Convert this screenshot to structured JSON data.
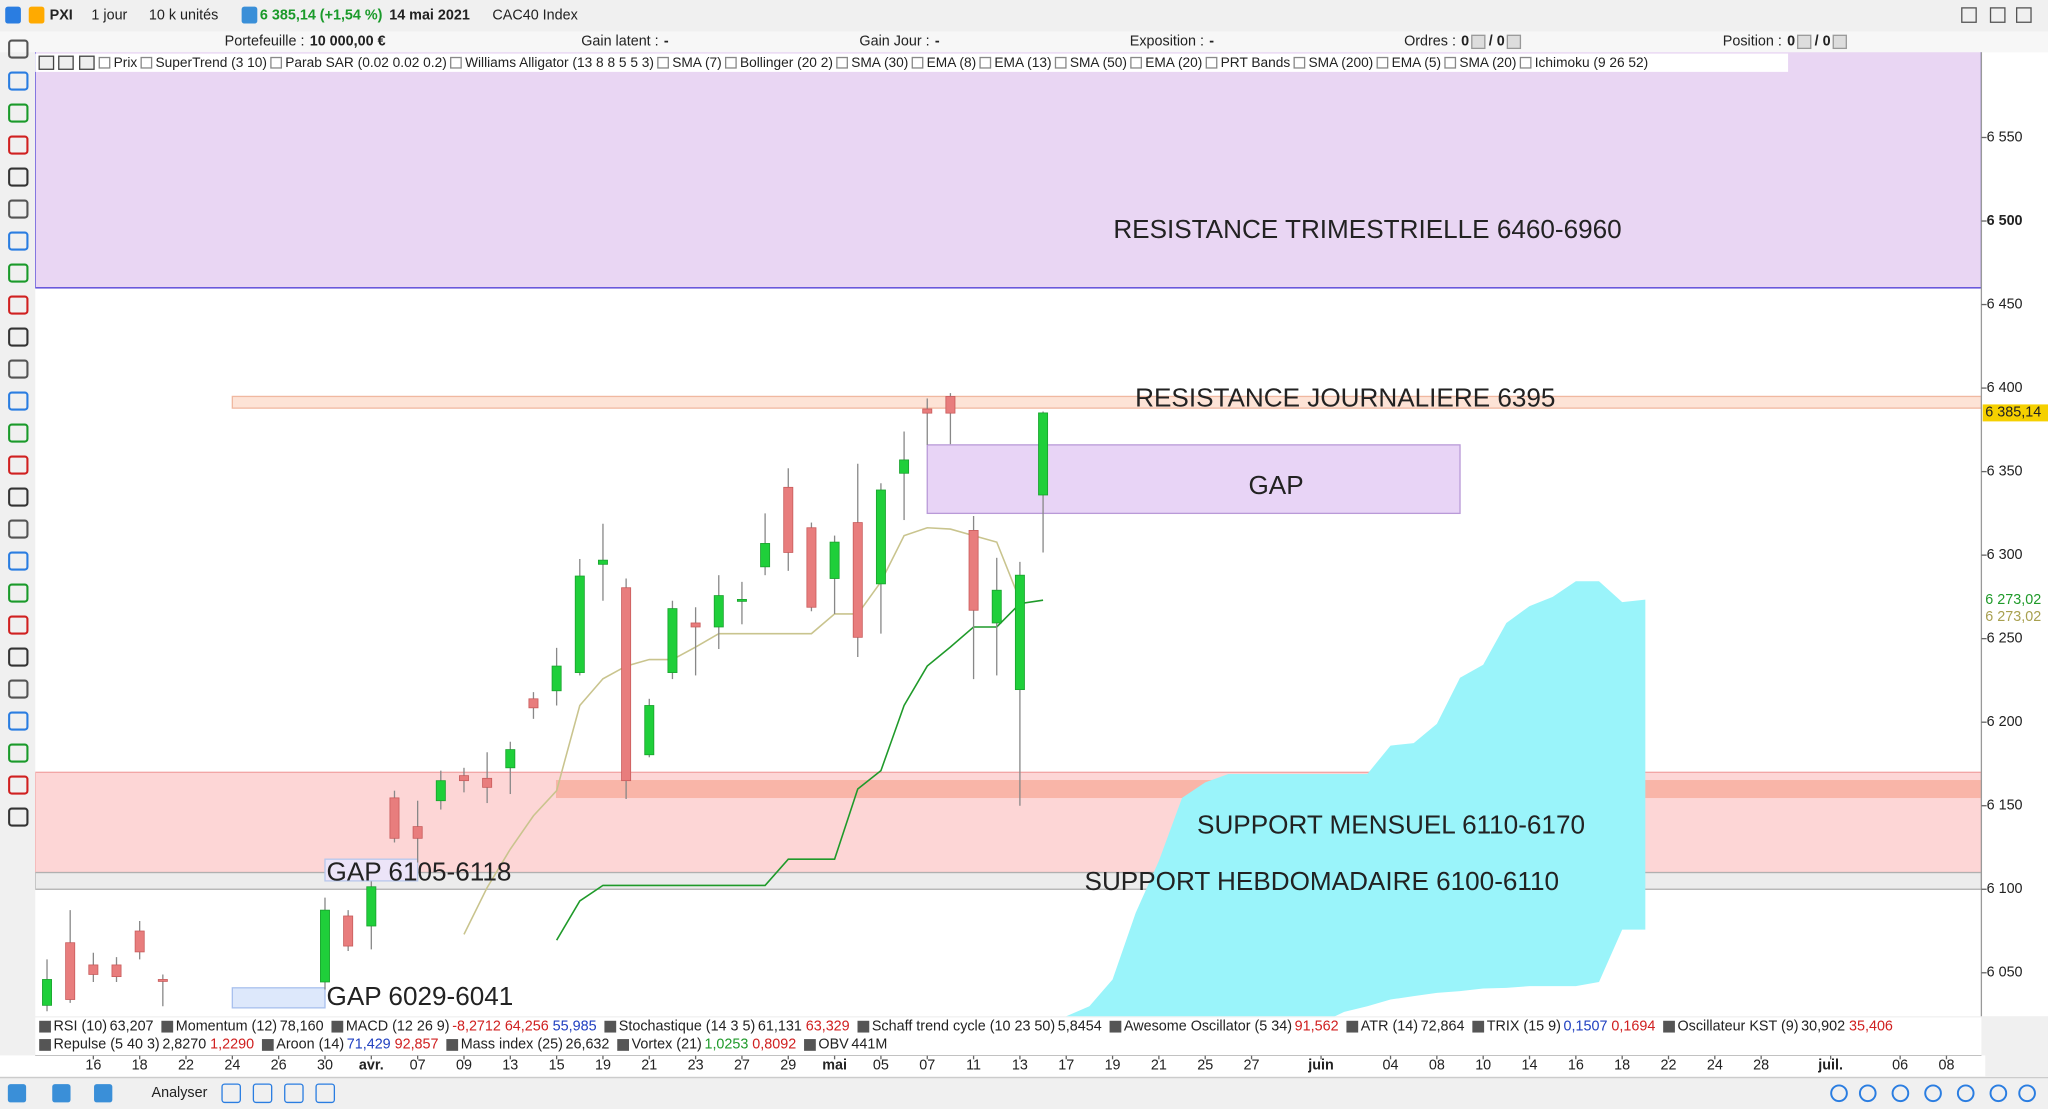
{
  "toolbar": {
    "symbol": "PXI",
    "period": "1 jour",
    "units": "10 k unités",
    "price": "6 385,14 (+1,54 %)",
    "date": "14 mai 2021",
    "instrument": "CAC40 Index"
  },
  "info_bar": [
    {
      "label": "Portefeuille :",
      "value": "10 000,00 €"
    },
    {
      "label": "Gain latent :",
      "value": "-"
    },
    {
      "label": "Gain Jour :",
      "value": "-"
    },
    {
      "label": "Exposition :",
      "value": "-"
    },
    {
      "label": "Ordres :",
      "value": "0",
      "extra": "/ 0"
    },
    {
      "label": "Position :",
      "value": "0",
      "extra": "/ 0"
    }
  ],
  "overlays": [
    "Prix",
    "SuperTrend (3 10)",
    "Parab SAR (0.02 0.02 0.2)",
    "Williams Alligator (13 8 8 5 5 3)",
    "SMA (7)",
    "Bollinger (20 2)",
    "SMA (30)",
    "EMA (8)",
    "EMA (13)",
    "SMA (50)",
    "EMA (20)",
    "PRT Bands",
    "SMA (200)",
    "EMA (5)",
    "SMA (20)",
    "Ichimoku (9 26 52)"
  ],
  "chart_data": {
    "type": "candlestick",
    "categories": [
      null,
      null,
      "16",
      null,
      "18",
      null,
      "22",
      null,
      "24",
      null,
      "26",
      null,
      "30",
      null,
      "avr.",
      null,
      "07",
      null,
      "09",
      null,
      "13",
      null,
      "15",
      null,
      "19",
      null,
      "21",
      null,
      "23",
      null,
      "27",
      null,
      "29",
      null,
      "mai",
      null,
      "05",
      null,
      "07",
      null,
      "11",
      null,
      "13",
      null,
      "17",
      null,
      "19",
      null,
      "21",
      null,
      "25",
      null,
      "27",
      null,
      null,
      "juin",
      null,
      null,
      "04",
      null,
      "08",
      null,
      "10",
      null,
      "14",
      null,
      "16",
      null,
      "18",
      null,
      "22",
      null,
      "24",
      null,
      "28",
      null,
      null,
      "juil.",
      null,
      null,
      "06",
      null,
      "08",
      null
    ],
    "open": [
      6030.5,
      6068,
      6054.7,
      6054.7,
      6075,
      6046,
      null,
      null,
      null,
      null,
      null,
      null,
      6044.5,
      6084,
      6078,
      6154.7,
      6137.5,
      6153,
      6168,
      6166.4,
      6172.7,
      6214,
      6218.8,
      6229.7,
      6294.5,
      6280.5,
      6180.5,
      6229.7,
      6259.4,
      6257,
      6273,
      6293,
      6340.6,
      6316.4,
      6286,
      6319.5,
      6282.8,
      6349,
      6387.5,
      6395,
      6314.8,
      6259.4,
      6219.5,
      6336,
      null,
      null,
      null,
      null,
      null,
      null,
      null,
      null,
      null,
      null,
      null,
      null,
      null,
      null,
      null,
      null,
      null,
      null,
      null,
      null,
      null,
      null,
      null,
      null,
      null,
      null,
      null,
      null,
      null,
      null,
      null,
      null,
      null,
      null,
      null,
      null,
      null,
      null,
      null,
      null
    ],
    "high": [
      6058,
      6087.5,
      6062,
      6059.4,
      6081,
      6049,
      null,
      null,
      null,
      null,
      null,
      null,
      6095,
      6087.5,
      6104.7,
      6159,
      6153,
      6171,
      6172.7,
      6182,
      6188.3,
      6218,
      6244.5,
      6297.7,
      6318.8,
      6286,
      6214,
      6272.7,
      6268.8,
      6288,
      6284,
      6325,
      6352,
      6319.5,
      6311.7,
      6354.7,
      6343,
      6374,
      6393.8,
      6397,
      6323.4,
      6298.4,
      6296,
      6386,
      null,
      null,
      null,
      null,
      null,
      null,
      null,
      null,
      null,
      null,
      null,
      null,
      null,
      null,
      null,
      null,
      null,
      null,
      null,
      null,
      null,
      null,
      null,
      null,
      null,
      null,
      null,
      null,
      null,
      null,
      null,
      null,
      null,
      null,
      null,
      null,
      null,
      null,
      null,
      null
    ],
    "low": [
      6027,
      6032,
      6044.5,
      6044.5,
      6058,
      6030,
      null,
      null,
      null,
      null,
      null,
      null,
      6040,
      6063,
      6064,
      6128,
      6116,
      6147.7,
      6158,
      6151.6,
      6157,
      6202,
      6210,
      6228,
      6272.7,
      6154,
      6179,
      6225.8,
      6228,
      6243.8,
      6258.6,
      6288,
      6290.6,
      6266.4,
      6264.8,
      6239,
      6253,
      6321,
      6366,
      6366.4,
      6225.8,
      6228,
      6150,
      6301.6,
      null,
      null,
      null,
      null,
      null,
      null,
      null,
      null,
      null,
      null,
      null,
      null,
      null,
      null,
      null,
      null,
      null,
      null,
      null,
      null,
      null,
      null,
      null,
      null,
      null,
      null,
      null,
      null,
      null,
      null,
      null,
      null,
      null,
      null,
      null,
      null,
      null,
      null,
      null,
      null
    ],
    "close": [
      6046,
      6034,
      6049,
      6047.7,
      6062.5,
      6045,
      null,
      null,
      null,
      null,
      null,
      null,
      6087.5,
      6066,
      6101.5,
      6130.5,
      6130.5,
      6165,
      6165,
      6161,
      6183.6,
      6208.6,
      6233.6,
      6287.5,
      6297,
      6165,
      6210,
      6268,
      6257,
      6275.8,
      6273.5,
      6307,
      6301.6,
      6268.8,
      6307.8,
      6250.8,
      6339,
      6357,
      6385,
      6385,
      6267,
      6279,
      6288,
      6385.14,
      null,
      null,
      null,
      null,
      null,
      null,
      null,
      null,
      null,
      null,
      null,
      null,
      null,
      null,
      null,
      null,
      null,
      null,
      null,
      null,
      null,
      null,
      null,
      null,
      null,
      null,
      null,
      null,
      null,
      null,
      null,
      null,
      null,
      null,
      null,
      null,
      null,
      null,
      null,
      null
    ],
    "up_color": "#1fcf3a",
    "down_color": "#e87d7d",
    "ylim": [
      6024,
      6601
    ],
    "yticks": [
      {
        "value": 6550,
        "label": "6 550"
      },
      {
        "value": 6500,
        "label": "6 500"
      },
      {
        "value": 6450,
        "label": "6 450"
      },
      {
        "value": 6400,
        "label": "6 400"
      },
      {
        "value": 6350,
        "label": "6 350"
      },
      {
        "value": 6300,
        "label": "6 300"
      },
      {
        "value": 6250,
        "label": "6 250"
      },
      {
        "value": 6200,
        "label": "6 200"
      },
      {
        "value": 6150,
        "label": "6 150"
      },
      {
        "value": 6100,
        "label": "6 100"
      },
      {
        "value": 6050,
        "label": "6 050"
      }
    ],
    "lines": [
      {
        "color": "#1f9a2a",
        "values": [
          null,
          null,
          null,
          null,
          null,
          null,
          null,
          null,
          null,
          null,
          null,
          null,
          null,
          null,
          null,
          null,
          null,
          null,
          null,
          null,
          null,
          null,
          6069.5,
          6093,
          6102.3,
          6102.3,
          6102.3,
          6102.3,
          6102.3,
          6102.3,
          6102.3,
          6102.3,
          6118,
          6118,
          6118,
          6160,
          6171,
          6210,
          6233.6,
          6245,
          6257,
          6257,
          6271,
          6273.02,
          null,
          null,
          null,
          null,
          null,
          null,
          null,
          null,
          null,
          null,
          null,
          null,
          null,
          null,
          null,
          null,
          null,
          null,
          null,
          null,
          null,
          null,
          null,
          null,
          null,
          null,
          null,
          null,
          null,
          null,
          null,
          null,
          null,
          null,
          null,
          null,
          null,
          null,
          null,
          null
        ]
      },
      {
        "color": "#c9c48e",
        "values": [
          null,
          null,
          null,
          null,
          null,
          null,
          null,
          null,
          null,
          null,
          null,
          null,
          null,
          null,
          null,
          null,
          null,
          null,
          6073,
          6101,
          6124,
          6144,
          6159,
          6210,
          6226,
          6233.6,
          6237.5,
          6237.5,
          6245,
          6253,
          6253,
          6253,
          6253,
          6253,
          6264.8,
          6264.8,
          6284,
          6311.7,
          6316.4,
          6315.6,
          6311.7,
          6307.8,
          6273.02,
          null,
          null,
          null,
          null,
          null,
          null,
          null,
          null,
          null,
          null,
          null,
          null,
          null,
          null,
          null,
          null,
          null,
          null,
          null,
          null,
          null,
          null,
          null,
          null,
          null,
          null,
          null,
          null,
          null,
          null,
          null,
          null,
          null,
          null,
          null,
          null,
          null,
          null,
          null,
          null,
          null
        ]
      }
    ],
    "cloud": {
      "color": "#9af4fa",
      "upper": [
        null,
        null,
        null,
        null,
        null,
        null,
        null,
        null,
        null,
        null,
        null,
        null,
        null,
        null,
        null,
        null,
        null,
        null,
        null,
        null,
        null,
        null,
        null,
        null,
        null,
        null,
        null,
        null,
        null,
        null,
        null,
        null,
        null,
        null,
        null,
        null,
        null,
        null,
        null,
        null,
        null,
        null,
        null,
        null,
        6024,
        6030,
        6046,
        6085.9,
        6117,
        6154.7,
        6164,
        6169,
        6169,
        6169,
        6169,
        6169,
        6169,
        6169,
        6186,
        6187.5,
        6199,
        6226.6,
        6234.4,
        6259.4,
        6269.5,
        6275,
        6284.4,
        6284.4,
        6271.9,
        6273.4,
        null,
        null,
        null,
        null,
        null,
        null,
        null,
        null,
        null,
        null,
        null,
        null,
        null,
        null
      ],
      "lower": [
        null,
        null,
        null,
        null,
        null,
        null,
        null,
        null,
        null,
        null,
        null,
        null,
        null,
        null,
        null,
        null,
        null,
        null,
        null,
        null,
        null,
        null,
        null,
        null,
        null,
        null,
        null,
        null,
        null,
        null,
        null,
        null,
        null,
        null,
        null,
        null,
        null,
        null,
        null,
        null,
        null,
        null,
        null,
        null,
        6020,
        6020,
        6020,
        6020,
        6020,
        6020,
        6020,
        6020,
        6020,
        6020,
        6020,
        6020,
        6026.6,
        6030,
        6034,
        6036,
        6038,
        6039,
        6040.6,
        6041,
        6042,
        6042,
        6042,
        6044.5,
        6075.8,
        6075.8,
        null,
        null,
        null,
        null,
        null,
        null,
        null,
        null,
        null,
        null,
        null,
        null,
        null,
        null
      ]
    },
    "zones": [
      {
        "label": "RESISTANCE TRIMESTRIELLE 6460-6960",
        "low": 6460,
        "high": 6960,
        "color": "#e9d6f3",
        "border": "#4b3bd6"
      },
      {
        "label": "RESISTANCE JOURNALIERE 6395",
        "low": 6388,
        "high": 6395,
        "from": 8,
        "color": "#fde3d6",
        "border": "#f0b8a0"
      },
      {
        "label": "GAP",
        "low": 6325,
        "high": 6366,
        "from": 38,
        "to": 61,
        "color": "#e8d4f6",
        "border": "#b99ad8"
      },
      {
        "label": "SUPPORT MENSUEL 6110-6170",
        "low": 6110,
        "high": 6170,
        "color": "#fdd6d6",
        "border": "#f2a5a5"
      },
      {
        "low": 6155,
        "high": 6165,
        "from": 22,
        "color": "#f9b5a8",
        "border": "#f9b5a8"
      },
      {
        "label": "SUPPORT HEBDOMADAIRE 6100-6110",
        "low": 6100,
        "high": 6110,
        "color": "#ececec",
        "border": "#b0b0b0"
      },
      {
        "label": "GAP 6105-6118",
        "low": 6105,
        "high": 6118,
        "from": 12,
        "to": 16,
        "color": "#ece4f8",
        "border": "#b8c8ec"
      },
      {
        "label": "GAP 6029-6041",
        "low": 6029,
        "high": 6041,
        "from": 8,
        "to": 12,
        "color": "#dde8fb",
        "border": "#a8c0ee"
      }
    ],
    "price_labels": [
      {
        "value": 6385.14,
        "label": "6 385,14",
        "color": "#f5d000",
        "text_color": "#222222"
      },
      {
        "value": 6273.02,
        "label": "6 273,02",
        "color": "#ffffff",
        "text_color": "#1f9a2a"
      },
      {
        "value": 6273.02,
        "label": "6 273,02",
        "color": "#ffffff",
        "text_color": "#a8a050"
      }
    ]
  },
  "indicators": [
    [
      {
        "name": "RSI (10)",
        "values": [
          "63,207"
        ],
        "colors": [
          "#222222"
        ]
      },
      {
        "name": "Momentum (12)",
        "values": [
          "78,160"
        ],
        "colors": [
          "#222222"
        ]
      },
      {
        "name": "MACD (12 26 9)",
        "values": [
          "-8,2712",
          "64,256",
          "55,985"
        ],
        "colors": [
          "#d02020",
          "#d02020",
          "#2040c0"
        ]
      },
      {
        "name": "Stochastique (14 3 5)",
        "values": [
          "61,131",
          "63,329"
        ],
        "colors": [
          "#222222",
          "#d02020"
        ]
      },
      {
        "name": "Schaff trend cycle (10 23 50)",
        "values": [
          "5,8454"
        ],
        "colors": [
          "#222222"
        ]
      },
      {
        "name": "Awesome Oscillator (5 34)",
        "values": [
          "91,562"
        ],
        "colors": [
          "#d02020"
        ]
      },
      {
        "name": "ATR (14)",
        "values": [
          "72,864"
        ],
        "colors": [
          "#222222"
        ]
      },
      {
        "name": "TRIX (15 9)",
        "values": [
          "0,1507",
          "0,1694"
        ],
        "colors": [
          "#2040c0",
          "#d02020"
        ]
      },
      {
        "name": "Oscillateur KST (9)",
        "values": [
          "30,902",
          "35,406"
        ],
        "colors": [
          "#222222",
          "#d02020"
        ]
      }
    ],
    [
      {
        "name": "Repulse (5 40 3)",
        "values": [
          "2,8270",
          "1,2290"
        ],
        "colors": [
          "#222222",
          "#d02020"
        ]
      },
      {
        "name": "Aroon (14)",
        "values": [
          "71,429",
          "92,857"
        ],
        "colors": [
          "#2040c0",
          "#d02020"
        ]
      },
      {
        "name": "Mass index (25)",
        "values": [
          "26,632"
        ],
        "colors": [
          "#222222"
        ]
      },
      {
        "name": "Vortex (21)",
        "values": [
          "1,0253",
          "0,8092"
        ],
        "colors": [
          "#1f9a2a",
          "#d02020"
        ]
      },
      {
        "name": "OBV",
        "values": [
          "441M"
        ],
        "colors": [
          "#222222"
        ]
      }
    ]
  ],
  "bottom_bar": {
    "label": "Analyser"
  }
}
